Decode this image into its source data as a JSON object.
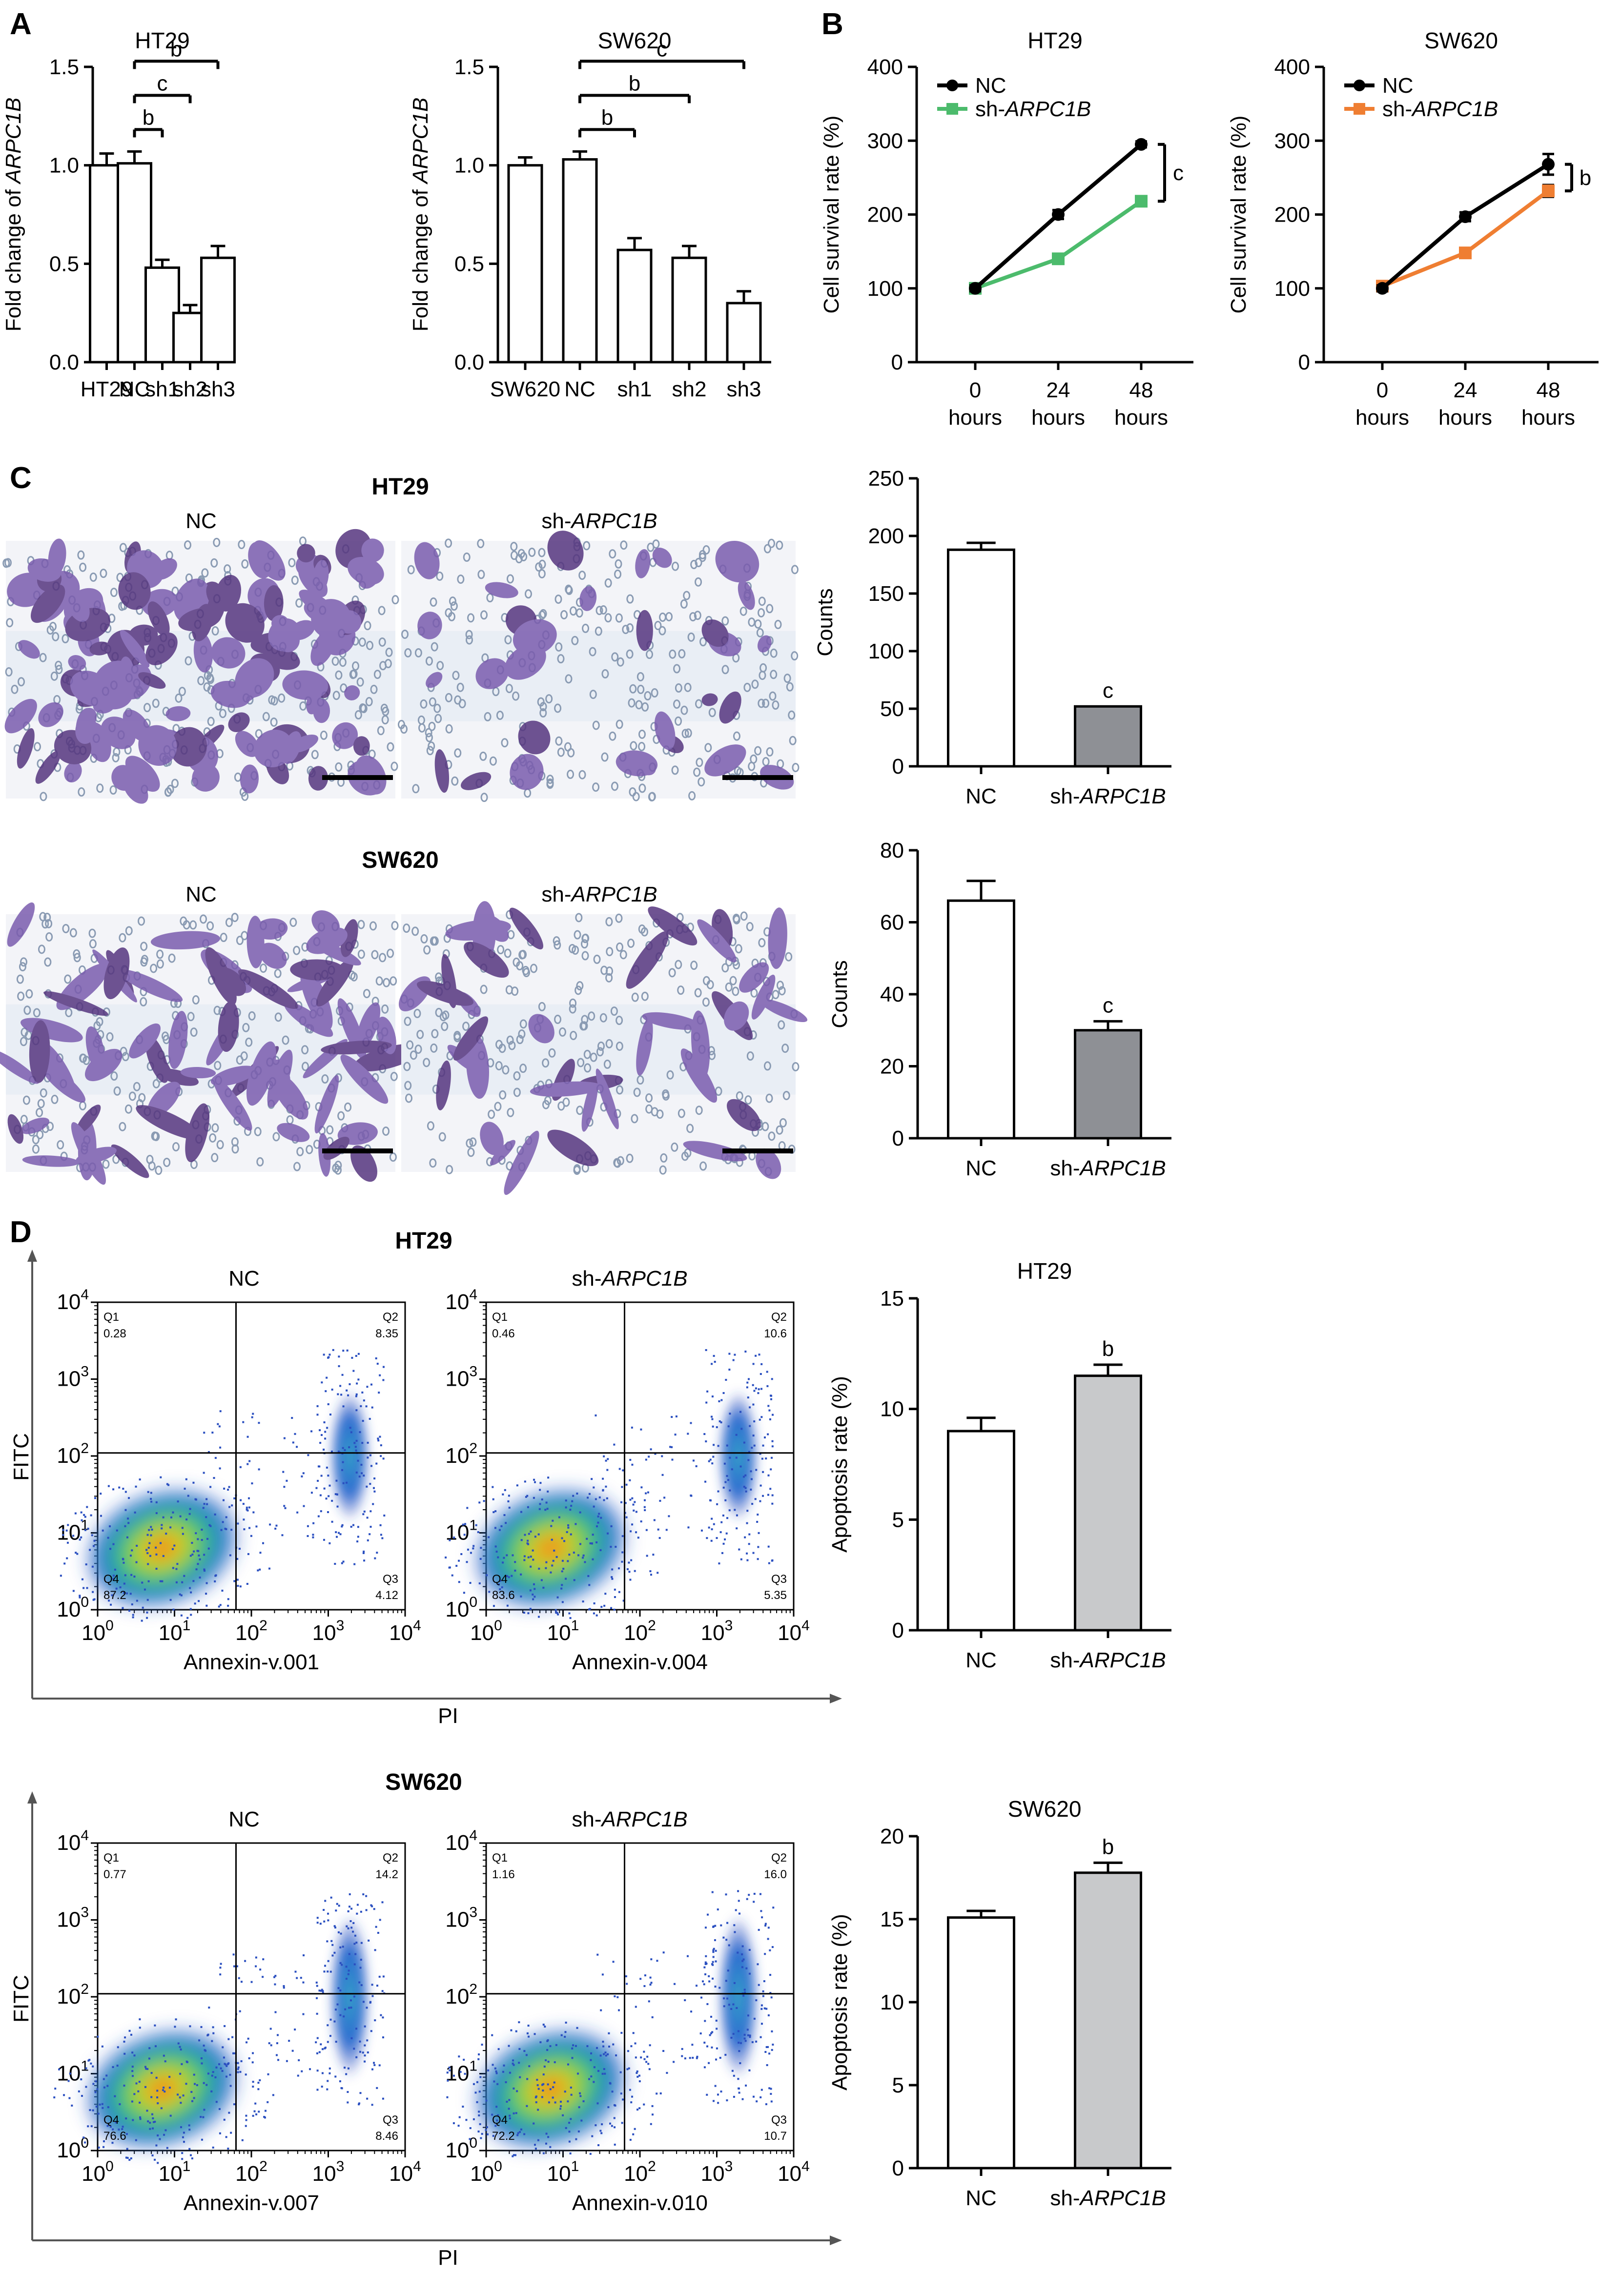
{
  "panel_labels": {
    "a": "A",
    "b": "B",
    "c": "C",
    "d": "D"
  },
  "colors": {
    "black": "#000000",
    "green": "#4cbb6c",
    "orange": "#ef7e32",
    "dark_gray_bar": "#8e9095",
    "light_gray_bar": "#c8c9cb"
  },
  "chart_data": [
    {
      "id": "A1",
      "type": "bar",
      "title": "HT29",
      "ylabel_prefix": "Fold change of ",
      "ylabel_gene": "ARPC1B",
      "categories": [
        "HT29",
        "NC",
        "sh1",
        "sh2",
        "sh3"
      ],
      "values": [
        1.0,
        1.01,
        0.48,
        0.25,
        0.53
      ],
      "errors": [
        0.06,
        0.06,
        0.04,
        0.04,
        0.06
      ],
      "ylim": [
        0,
        1.5
      ],
      "yticks": [
        "0.0",
        "0.5",
        "1.0",
        "1.5"
      ],
      "significance": [
        {
          "from": "NC",
          "to": "sh1",
          "label": "b"
        },
        {
          "from": "NC",
          "to": "sh2",
          "label": "c"
        },
        {
          "from": "NC",
          "to": "sh3",
          "label": "b"
        }
      ]
    },
    {
      "id": "A2",
      "type": "bar",
      "title": "SW620",
      "ylabel_prefix": "Fold change of ",
      "ylabel_gene": "ARPC1B",
      "categories": [
        "SW620",
        "NC",
        "sh1",
        "sh2",
        "sh3"
      ],
      "values": [
        1.0,
        1.03,
        0.57,
        0.53,
        0.3
      ],
      "errors": [
        0.04,
        0.04,
        0.06,
        0.06,
        0.06
      ],
      "ylim": [
        0,
        1.5
      ],
      "yticks": [
        "0.0",
        "0.5",
        "1.0",
        "1.5"
      ],
      "significance": [
        {
          "from": "NC",
          "to": "sh1",
          "label": "b"
        },
        {
          "from": "NC",
          "to": "sh2",
          "label": "b"
        },
        {
          "from": "NC",
          "to": "sh3",
          "label": "c"
        }
      ]
    },
    {
      "id": "B1",
      "type": "line",
      "title": "HT29",
      "ylabel": "Cell survival rate (%)",
      "x_top": [
        "0",
        "24",
        "48"
      ],
      "x_bottom": [
        "hours",
        "hours",
        "hours"
      ],
      "ylim": [
        0,
        400
      ],
      "yticks": [
        "0",
        "100",
        "200",
        "300",
        "400"
      ],
      "series": [
        {
          "name": "NC",
          "values": [
            100,
            200,
            295
          ],
          "errors": [
            4,
            6,
            4
          ],
          "color": "#000000"
        },
        {
          "name_prefix": "sh-",
          "name_gene": "ARPC1B",
          "values": [
            100,
            140,
            218
          ],
          "errors": [
            3,
            5,
            4
          ],
          "color": "#4cbb6c"
        }
      ],
      "significance": "c"
    },
    {
      "id": "B2",
      "type": "line",
      "title": "SW620",
      "ylabel": "Cell survival rate (%)",
      "x_top": [
        "0",
        "24",
        "48"
      ],
      "x_bottom": [
        "hours",
        "hours",
        "hours"
      ],
      "ylim": [
        0,
        400
      ],
      "yticks": [
        "0",
        "100",
        "200",
        "300",
        "400"
      ],
      "series": [
        {
          "name": "NC",
          "values": [
            100,
            197,
            268
          ],
          "errors": [
            4,
            6,
            14
          ],
          "color": "#000000"
        },
        {
          "name_prefix": "sh-",
          "name_gene": "ARPC1B",
          "values": [
            103,
            148,
            232
          ],
          "errors": [
            4,
            5,
            8
          ],
          "color": "#ef7e32"
        }
      ],
      "significance": "b"
    },
    {
      "id": "C1",
      "type": "bar",
      "title": "",
      "ylabel": "Counts",
      "categories": [
        "NC",
        "sh-ARPC1B"
      ],
      "values": [
        188,
        52
      ],
      "errors": [
        6,
        0
      ],
      "fills": [
        "#ffffff",
        "#8e9095"
      ],
      "ylim": [
        0,
        250
      ],
      "yticks": [
        "0",
        "50",
        "100",
        "150",
        "200",
        "250"
      ],
      "sig_label": "c"
    },
    {
      "id": "C2",
      "type": "bar",
      "title": "",
      "ylabel": "Counts",
      "categories": [
        "NC",
        "sh-ARPC1B"
      ],
      "values": [
        66,
        30
      ],
      "errors": [
        5.5,
        2.5
      ],
      "fills": [
        "#ffffff",
        "#8e9095"
      ],
      "ylim": [
        0,
        80
      ],
      "yticks": [
        "0",
        "20",
        "40",
        "60",
        "80"
      ],
      "sig_label": "c"
    },
    {
      "id": "D1",
      "type": "bar",
      "title": "HT29",
      "ylabel": "Apoptosis rate (%)",
      "categories": [
        "NC",
        "sh-ARPC1B"
      ],
      "values": [
        9.0,
        11.5
      ],
      "errors": [
        0.6,
        0.5
      ],
      "fills": [
        "#ffffff",
        "#c8c9cb"
      ],
      "ylim": [
        0,
        15
      ],
      "yticks": [
        "0",
        "5",
        "10",
        "15"
      ],
      "sig_label": "b"
    },
    {
      "id": "D2",
      "type": "bar",
      "title": "SW620",
      "ylabel": "Apoptosis rate (%)",
      "categories": [
        "NC",
        "sh-ARPC1B"
      ],
      "values": [
        15.1,
        17.8
      ],
      "errors": [
        0.4,
        0.6
      ],
      "fills": [
        "#ffffff",
        "#c8c9cb"
      ],
      "ylim": [
        0,
        20
      ],
      "yticks": [
        "0",
        "5",
        "10",
        "15",
        "20"
      ],
      "sig_label": "b"
    }
  ],
  "panel_c": {
    "ht29_title": "HT29",
    "sw620_title": "SW620",
    "nc_label": "NC",
    "sh_prefix": "sh-",
    "sh_gene": "ARPC1B"
  },
  "flow": {
    "row1_title": "HT29",
    "row2_title": "SW620",
    "ylabel": "FITC",
    "pi_label": "PI",
    "nc_label": "NC",
    "sh_prefix": "sh-",
    "sh_gene": "ARPC1B",
    "plots": [
      {
        "xlabel": "Annexin-v.001",
        "q1": "0.28",
        "q2": "8.35",
        "q3": "4.12",
        "q4": "87.2"
      },
      {
        "xlabel": "Annexin-v.004",
        "q1": "0.46",
        "q2": "10.6",
        "q3": "5.35",
        "q4": "83.6"
      },
      {
        "xlabel": "Annexin-v.007",
        "q1": "0.77",
        "q2": "14.2",
        "q3": "8.46",
        "q4": "76.6"
      },
      {
        "xlabel": "Annexin-v.010",
        "q1": "1.16",
        "q2": "16.0",
        "q3": "10.7",
        "q4": "72.2"
      }
    ],
    "quadrant_names": {
      "q1": "Q1",
      "q2": "Q2",
      "q3": "Q3",
      "q4": "Q4"
    }
  }
}
